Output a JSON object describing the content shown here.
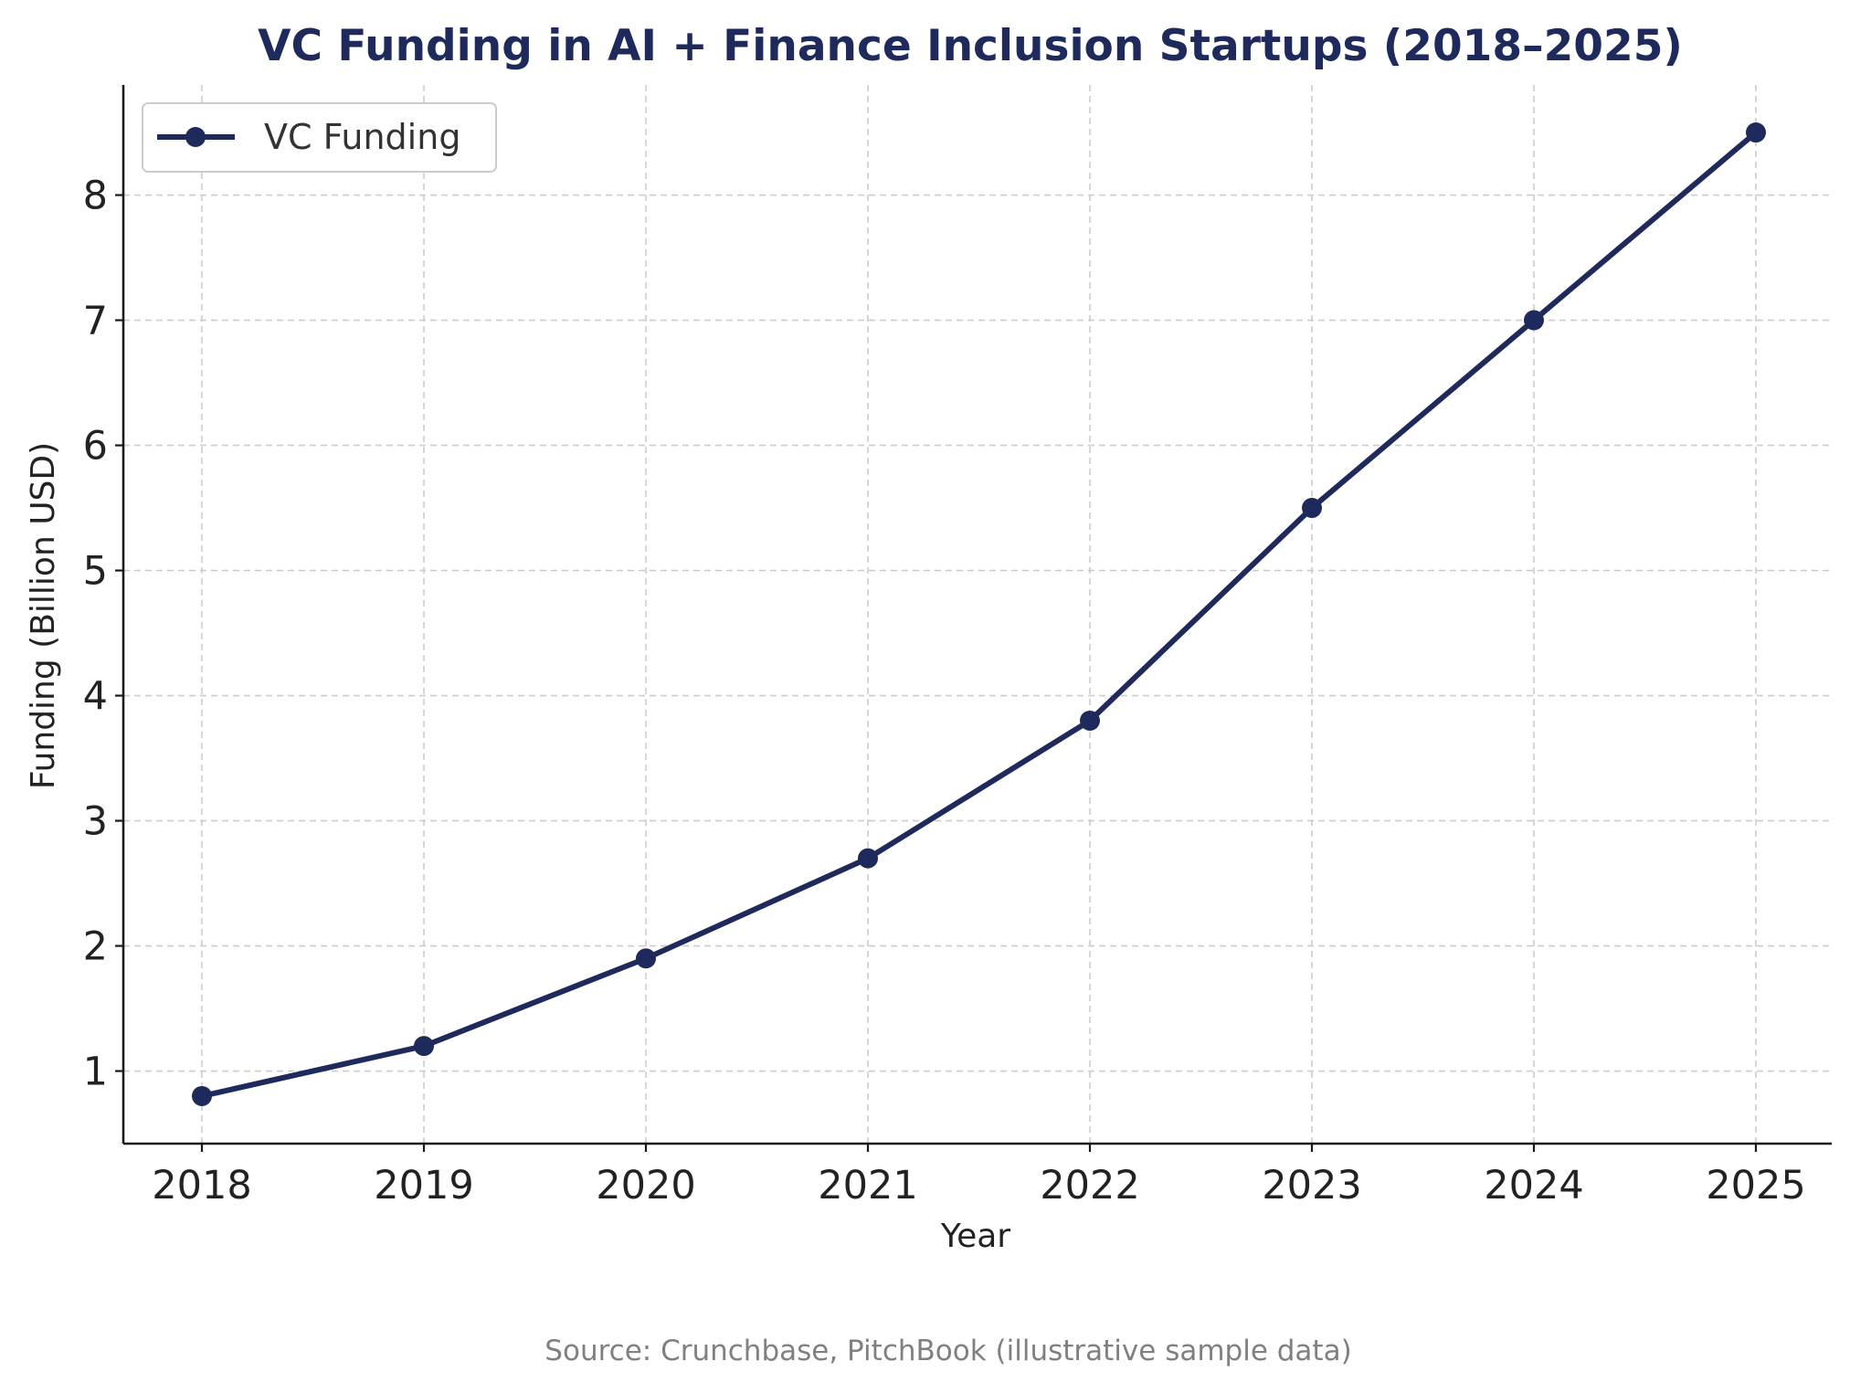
{
  "chart_data": {
    "type": "line",
    "title": "VC Funding in AI + Finance Inclusion Startups (2018–2025)",
    "xlabel": "Year",
    "ylabel": "Funding (Billion USD)",
    "categories": [
      "2018",
      "2019",
      "2020",
      "2021",
      "2022",
      "2023",
      "2024",
      "2025"
    ],
    "series": [
      {
        "name": "VC Funding",
        "values": [
          0.8,
          1.2,
          1.9,
          2.7,
          3.8,
          5.5,
          7.0,
          8.5
        ]
      }
    ],
    "ylim": [
      0.42,
      8.88
    ],
    "yticks": [
      "1",
      "2",
      "3",
      "4",
      "5",
      "6",
      "7",
      "8"
    ],
    "grid": true,
    "legend_position": "top-left",
    "line_color": "#1f2a5c",
    "title_color": "#1f2a5c",
    "source_note": "Source: Crunchbase, PitchBook (illustrative sample data)"
  }
}
